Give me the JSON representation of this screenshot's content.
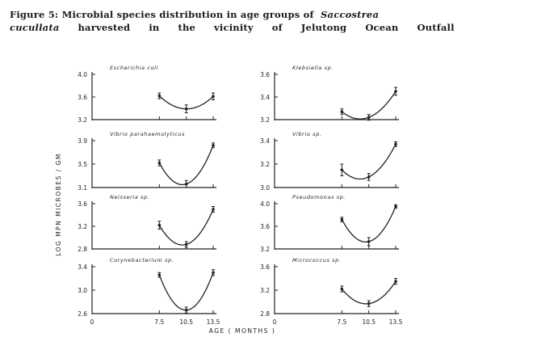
{
  "figure": {
    "caption_prefix": "Figure 5:",
    "caption_line1": "Microbial species distribution in age groups of",
    "species_italic_1": "Saccostrea",
    "species_italic_2": "cucullata",
    "caption_line2_words": [
      "harvested",
      "in",
      "the",
      "vicinity",
      "of",
      "Jelutong",
      "Ocean",
      "Outfall"
    ]
  },
  "chart_data": {
    "type": "line",
    "xlabel": "AGE ( MONTHS )",
    "ylabel": "LOG MPN MICROBES / GM",
    "x_ticks": [
      "0",
      "7.5",
      "10.5",
      "13.5"
    ],
    "x_values": [
      7.5,
      10.5,
      13.5
    ],
    "panels": [
      {
        "title": "Escherichia coli",
        "yticks": [
          "4.0",
          "3.6",
          "3.2"
        ],
        "ylim": [
          3.2,
          4.0
        ],
        "y": [
          3.62,
          3.39,
          3.61
        ],
        "err": [
          0.05,
          0.07,
          0.06
        ]
      },
      {
        "title": "Klebsiella sp.",
        "yticks": [
          "3.6",
          "3.4",
          "3.2"
        ],
        "ylim": [
          3.2,
          3.6
        ],
        "y": [
          3.27,
          3.22,
          3.45
        ],
        "err": [
          0.025,
          0.025,
          0.035
        ]
      },
      {
        "title": "Vibrio parahaemolyticus",
        "yticks": [
          "3.9",
          "3.5",
          "3.1"
        ],
        "ylim": [
          3.1,
          3.9
        ],
        "y": [
          3.52,
          3.16,
          3.82
        ],
        "err": [
          0.05,
          0.06,
          0.04
        ]
      },
      {
        "title": "Vibrio sp.",
        "yticks": [
          "3.4",
          "3.2",
          "3.0"
        ],
        "ylim": [
          3.0,
          3.4
        ],
        "y": [
          3.15,
          3.09,
          3.37
        ],
        "err": [
          0.05,
          0.03,
          0.02
        ]
      },
      {
        "title": "Neisseria sp.",
        "yticks": [
          "3.6",
          "3.2",
          "2.8"
        ],
        "ylim": [
          2.8,
          3.6
        ],
        "y": [
          3.22,
          2.88,
          3.5
        ],
        "err": [
          0.07,
          0.05,
          0.05
        ]
      },
      {
        "title": "Pseudomonas sp.",
        "yticks": [
          "4.0",
          "3.6",
          "3.2"
        ],
        "ylim": [
          3.2,
          4.0
        ],
        "y": [
          3.72,
          3.33,
          3.95
        ],
        "err": [
          0.04,
          0.07,
          0.03
        ]
      },
      {
        "title": "Corynebacterium sp.",
        "yticks": [
          "3.4",
          "3.0",
          "2.6"
        ],
        "ylim": [
          2.6,
          3.4
        ],
        "y": [
          3.26,
          2.66,
          3.3
        ],
        "err": [
          0.04,
          0.05,
          0.05
        ]
      },
      {
        "title": "Micrococcus sp.",
        "yticks": [
          "3.6",
          "3.2",
          "2.8"
        ],
        "ylim": [
          2.8,
          3.6
        ],
        "y": [
          3.22,
          2.97,
          3.35
        ],
        "err": [
          0.05,
          0.05,
          0.05
        ]
      }
    ]
  }
}
